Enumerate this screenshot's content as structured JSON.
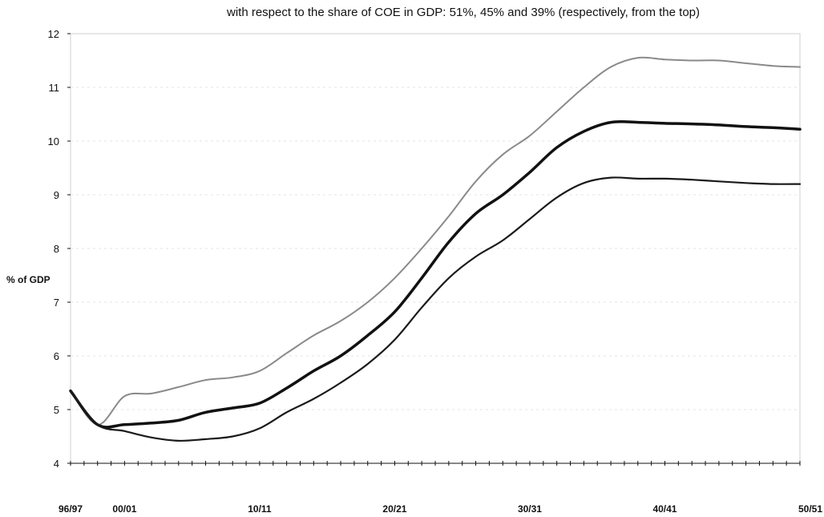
{
  "chart_data": {
    "type": "line",
    "title": "with respect to the share of COE in GDP: 51%, 45% and 39% (respectively, from the top)",
    "ylabel": "% of GDP",
    "xlabel": "",
    "ylim": [
      4,
      12
    ],
    "yticks": [
      "4",
      "5",
      "6",
      "7",
      "8",
      "9",
      "10",
      "11",
      "12"
    ],
    "x_categories_count": 55,
    "x_tick_labels": [
      {
        "index": 0,
        "label": "96/97"
      },
      {
        "index": 4,
        "label": "00/01"
      },
      {
        "index": 14,
        "label": "10/11"
      },
      {
        "index": 24,
        "label": "20/21"
      },
      {
        "index": 34,
        "label": "30/31"
      },
      {
        "index": 44,
        "label": "40/41"
      },
      {
        "index": 54,
        "label": "50/51"
      }
    ],
    "grid": "faint horizontal",
    "legend": "none",
    "series": [
      {
        "color": "#8a8a8a",
        "points": [
          [
            0,
            5.35
          ],
          [
            2,
            4.72
          ],
          [
            4,
            5.25
          ],
          [
            6,
            5.3
          ],
          [
            8,
            5.42
          ],
          [
            10,
            5.55
          ],
          [
            12,
            5.6
          ],
          [
            14,
            5.72
          ],
          [
            16,
            6.05
          ],
          [
            18,
            6.38
          ],
          [
            20,
            6.65
          ],
          [
            22,
            7.0
          ],
          [
            24,
            7.45
          ],
          [
            26,
            8.0
          ],
          [
            28,
            8.6
          ],
          [
            30,
            9.25
          ],
          [
            32,
            9.75
          ],
          [
            34,
            10.1
          ],
          [
            36,
            10.55
          ],
          [
            38,
            11.0
          ],
          [
            40,
            11.38
          ],
          [
            42,
            11.55
          ],
          [
            44,
            11.52
          ],
          [
            46,
            11.5
          ],
          [
            48,
            11.5
          ],
          [
            50,
            11.45
          ],
          [
            52,
            11.4
          ],
          [
            54,
            11.38
          ]
        ]
      },
      {
        "color": "#111111",
        "points": [
          [
            0,
            5.35
          ],
          [
            2,
            4.72
          ],
          [
            4,
            4.72
          ],
          [
            6,
            4.75
          ],
          [
            8,
            4.8
          ],
          [
            10,
            4.95
          ],
          [
            12,
            5.03
          ],
          [
            14,
            5.12
          ],
          [
            16,
            5.4
          ],
          [
            18,
            5.72
          ],
          [
            20,
            6.0
          ],
          [
            22,
            6.38
          ],
          [
            24,
            6.82
          ],
          [
            26,
            7.45
          ],
          [
            28,
            8.12
          ],
          [
            30,
            8.65
          ],
          [
            32,
            9.0
          ],
          [
            34,
            9.42
          ],
          [
            36,
            9.88
          ],
          [
            38,
            10.18
          ],
          [
            40,
            10.35
          ],
          [
            42,
            10.35
          ],
          [
            44,
            10.33
          ],
          [
            46,
            10.32
          ],
          [
            48,
            10.3
          ],
          [
            50,
            10.27
          ],
          [
            52,
            10.25
          ],
          [
            54,
            10.22
          ]
        ]
      },
      {
        "color": "#1a1a1a",
        "points": [
          [
            0,
            5.35
          ],
          [
            2,
            4.72
          ],
          [
            4,
            4.6
          ],
          [
            6,
            4.48
          ],
          [
            8,
            4.42
          ],
          [
            10,
            4.45
          ],
          [
            12,
            4.5
          ],
          [
            14,
            4.65
          ],
          [
            16,
            4.95
          ],
          [
            18,
            5.2
          ],
          [
            20,
            5.5
          ],
          [
            22,
            5.85
          ],
          [
            24,
            6.3
          ],
          [
            26,
            6.9
          ],
          [
            28,
            7.45
          ],
          [
            30,
            7.85
          ],
          [
            32,
            8.15
          ],
          [
            34,
            8.55
          ],
          [
            36,
            8.95
          ],
          [
            38,
            9.22
          ],
          [
            40,
            9.32
          ],
          [
            42,
            9.3
          ],
          [
            44,
            9.3
          ],
          [
            46,
            9.28
          ],
          [
            48,
            9.25
          ],
          [
            50,
            9.22
          ],
          [
            52,
            9.2
          ],
          [
            54,
            9.2
          ]
        ]
      }
    ]
  }
}
